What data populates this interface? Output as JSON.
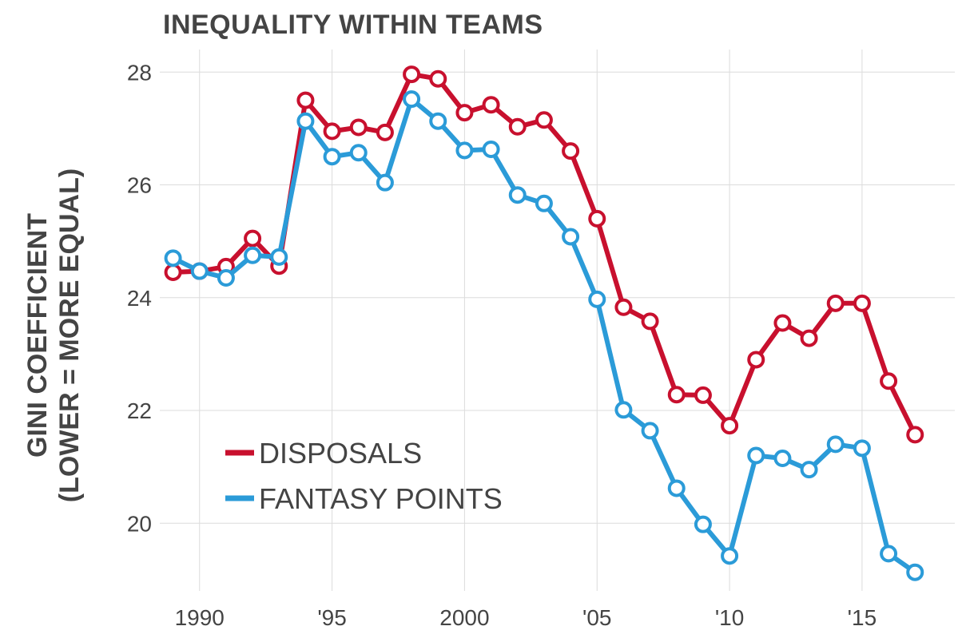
{
  "chart_data": {
    "type": "line",
    "title": "INEQUALITY WITHIN TEAMS",
    "ylabel_line1": "GINI COEFFICIENT",
    "ylabel_line2": "(LOWER = MORE EQUAL)",
    "xlabel": "",
    "x": [
      1989,
      1990,
      1991,
      1992,
      1993,
      1994,
      1995,
      1996,
      1997,
      1998,
      1999,
      2000,
      2001,
      2002,
      2003,
      2004,
      2005,
      2006,
      2007,
      2008,
      2009,
      2010,
      2011,
      2012,
      2013,
      2014,
      2015,
      2016,
      2017
    ],
    "xlim": [
      1988.5,
      2018.5
    ],
    "ylim": [
      18.8,
      28.4
    ],
    "xticks": [
      {
        "value": 1990,
        "label": "1990"
      },
      {
        "value": 1995,
        "label": "'95"
      },
      {
        "value": 2000,
        "label": "2000"
      },
      {
        "value": 2005,
        "label": "'05"
      },
      {
        "value": 2010,
        "label": "'10"
      },
      {
        "value": 2015,
        "label": "'15"
      }
    ],
    "yticks": [
      {
        "value": 20,
        "label": "20"
      },
      {
        "value": 22,
        "label": "22"
      },
      {
        "value": 24,
        "label": "24"
      },
      {
        "value": 26,
        "label": "26"
      },
      {
        "value": 28,
        "label": "28"
      }
    ],
    "grid": true,
    "legend_position": "bottom-left",
    "series": [
      {
        "name": "DISPOSALS",
        "color": "#c8102e",
        "values": [
          24.45,
          24.47,
          24.55,
          25.05,
          24.56,
          27.5,
          26.95,
          27.02,
          26.93,
          27.96,
          27.88,
          27.28,
          27.42,
          27.03,
          27.15,
          26.6,
          25.4,
          23.83,
          23.58,
          22.28,
          22.27,
          21.73,
          22.9,
          23.55,
          23.28,
          23.9,
          23.9,
          22.52,
          21.57
        ]
      },
      {
        "name": "FANTASY POINTS",
        "color": "#2b9bd8",
        "values": [
          24.7,
          24.47,
          24.35,
          24.75,
          24.72,
          27.13,
          26.5,
          26.57,
          26.04,
          27.52,
          27.13,
          26.61,
          26.63,
          25.82,
          25.67,
          25.08,
          23.97,
          22.01,
          21.64,
          20.62,
          19.98,
          19.42,
          21.2,
          21.15,
          20.95,
          21.4,
          21.33,
          19.46,
          19.13
        ]
      }
    ]
  }
}
